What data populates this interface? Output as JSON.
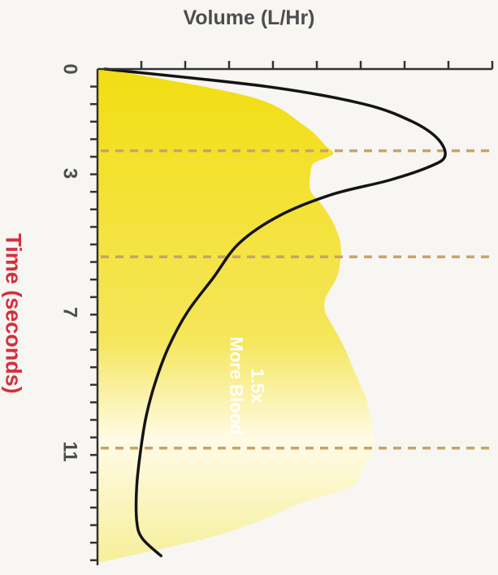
{
  "chart_data": {
    "type": "area",
    "xlabel": "Volume (L/Hr)",
    "ylabel": "Time (seconds)",
    "annotation": [
      "1.5x",
      "More Blood"
    ],
    "time_ticks": [
      0,
      3,
      7,
      11
    ],
    "reference_lines_time": [
      2.35,
      5.4,
      10.9
    ],
    "volume_tick_count": 9,
    "time_range": [
      0,
      14.2
    ],
    "volume_range": [
      0,
      10
    ],
    "grid": false,
    "colors": {
      "fill_top": "#f2de12",
      "fill_mid": "#f5e65c",
      "fill_bottom": "#fffbe6",
      "curve": "#141414",
      "reference_line": "#c9a26b",
      "axis": "#333333",
      "ylabel": "#d62f3c"
    },
    "series": [
      {
        "type": "area",
        "points": [
          [
            0,
            0.2
          ],
          [
            0.8,
            4.1
          ],
          [
            1.6,
            5.5
          ],
          [
            2.2,
            6.1
          ],
          [
            2.45,
            6.3
          ],
          [
            2.7,
            5.8
          ],
          [
            3.0,
            5.7
          ],
          [
            3.5,
            5.7
          ],
          [
            3.9,
            6.0
          ],
          [
            4.4,
            6.3
          ],
          [
            5.0,
            6.5
          ],
          [
            5.5,
            6.5
          ],
          [
            6.0,
            6.4
          ],
          [
            6.6,
            6.1
          ],
          [
            7.0,
            6.1
          ],
          [
            7.4,
            6.3
          ],
          [
            8.0,
            6.6
          ],
          [
            8.5,
            6.8
          ],
          [
            9.0,
            7.0
          ],
          [
            9.5,
            7.2
          ],
          [
            10.0,
            7.3
          ],
          [
            10.6,
            7.4
          ],
          [
            11.0,
            7.4
          ],
          [
            11.5,
            7.1
          ],
          [
            12.0,
            6.8
          ],
          [
            12.5,
            5.4
          ],
          [
            13.0,
            4.3
          ],
          [
            13.5,
            2.9
          ],
          [
            14.2,
            0.0
          ]
        ]
      },
      {
        "type": "line",
        "points": [
          [
            0,
            0.2
          ],
          [
            0.5,
            4.5
          ],
          [
            1.0,
            7.1
          ],
          [
            1.5,
            8.4
          ],
          [
            2.0,
            9.1
          ],
          [
            2.5,
            9.3
          ],
          [
            2.8,
            8.9
          ],
          [
            3.2,
            7.8
          ],
          [
            3.6,
            6.3
          ],
          [
            4.2,
            4.9
          ],
          [
            5.0,
            3.8
          ],
          [
            6.0,
            3.1
          ],
          [
            7.0,
            2.4
          ],
          [
            8.0,
            1.9
          ],
          [
            9.0,
            1.55
          ],
          [
            10.0,
            1.3
          ],
          [
            11.0,
            1.15
          ],
          [
            12.0,
            1.05
          ],
          [
            13.0,
            1.05
          ],
          [
            13.5,
            1.2
          ],
          [
            14.0,
            1.7
          ]
        ]
      }
    ]
  }
}
